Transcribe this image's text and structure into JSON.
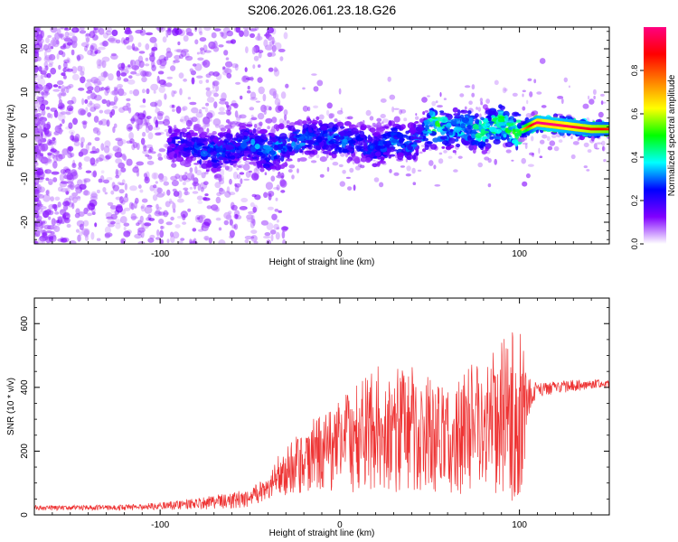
{
  "title": "S206.2026.061.23.18.G26",
  "chart_data": [
    {
      "type": "heatmap",
      "title": "S206.2026.061.23.18.G26",
      "xlabel": "Height of straight line (km)",
      "ylabel": "Frequency (Hz)",
      "xlim": [
        -170,
        150
      ],
      "ylim": [
        -25,
        25
      ],
      "x_ticks": [
        -100,
        0,
        100
      ],
      "x_tick_labels": [
        "-100",
        "0",
        "100"
      ],
      "y_ticks": [
        -20,
        -10,
        0,
        10,
        20
      ],
      "y_tick_labels": [
        "-20",
        "-10",
        "0",
        "10",
        "20"
      ],
      "colorbar": {
        "label": "Normalized spectral amplitude",
        "range": [
          0,
          1
        ],
        "ticks": [
          0,
          0.2,
          0.4,
          0.6,
          0.8
        ],
        "tick_labels": [
          "0.0",
          "0.2",
          "0.4",
          "0.6",
          "0.8"
        ],
        "colors": [
          "#ffffff",
          "#8000ff",
          "#0000ff",
          "#00ffff",
          "#00ff00",
          "#ffff00",
          "#ff8000",
          "#ff0000",
          "#ff0080"
        ]
      },
      "ridge": {
        "x": [
          -170,
          -140,
          -110,
          -90,
          -80,
          -70,
          -60,
          -50,
          -40,
          -30,
          -20,
          -10,
          0,
          10,
          20,
          30,
          40,
          45,
          50,
          55,
          60,
          70,
          80,
          90,
          95,
          100,
          110,
          120,
          130,
          140,
          150
        ],
        "center_freq": [
          0,
          0,
          -1,
          -2,
          -3,
          -4,
          -3,
          -2,
          -4,
          -2,
          -1,
          0,
          -1,
          -2,
          -3,
          -1,
          -2,
          0,
          2,
          3,
          1,
          2,
          1,
          3,
          1,
          1,
          3,
          2.5,
          2,
          1.5,
          1.5
        ],
        "peak_amplitude": [
          0.05,
          0.08,
          0.15,
          0.25,
          0.3,
          0.35,
          0.3,
          0.35,
          0.4,
          0.35,
          0.35,
          0.3,
          0.35,
          0.3,
          0.3,
          0.35,
          0.35,
          0.3,
          0.5,
          0.6,
          0.4,
          0.45,
          0.5,
          0.55,
          0.55,
          0.6,
          1.0,
          1.0,
          0.95,
          0.9,
          0.85
        ]
      }
    },
    {
      "type": "line",
      "xlabel": "Height of straight line (km)",
      "ylabel": "SNR (10 * v/v)",
      "xlim": [
        -170,
        150
      ],
      "ylim": [
        0,
        680
      ],
      "x_ticks": [
        -100,
        0,
        100
      ],
      "x_tick_labels": [
        "-100",
        "0",
        "100"
      ],
      "y_ticks": [
        0,
        200,
        400,
        600
      ],
      "y_tick_labels": [
        "0",
        "200",
        "400",
        "600"
      ],
      "color": "#ee3333",
      "series": [
        {
          "name": "SNR",
          "x": [
            -170,
            -150,
            -130,
            -110,
            -100,
            -90,
            -80,
            -70,
            -60,
            -50,
            -40,
            -35,
            -30,
            -20,
            -10,
            0,
            10,
            20,
            30,
            40,
            50,
            60,
            70,
            80,
            90,
            95,
            100,
            105,
            110,
            120,
            130,
            140,
            150
          ],
          "center": [
            22,
            22,
            23,
            25,
            28,
            30,
            35,
            40,
            45,
            55,
            80,
            120,
            140,
            170,
            200,
            220,
            240,
            280,
            260,
            270,
            250,
            230,
            260,
            280,
            300,
            320,
            300,
            360,
            390,
            400,
            405,
            410,
            410
          ],
          "spread": [
            8,
            8,
            9,
            10,
            12,
            14,
            18,
            22,
            25,
            30,
            40,
            60,
            80,
            100,
            130,
            150,
            170,
            200,
            200,
            200,
            180,
            160,
            200,
            220,
            240,
            280,
            320,
            70,
            25,
            20,
            18,
            15,
            15
          ]
        }
      ]
    }
  ]
}
